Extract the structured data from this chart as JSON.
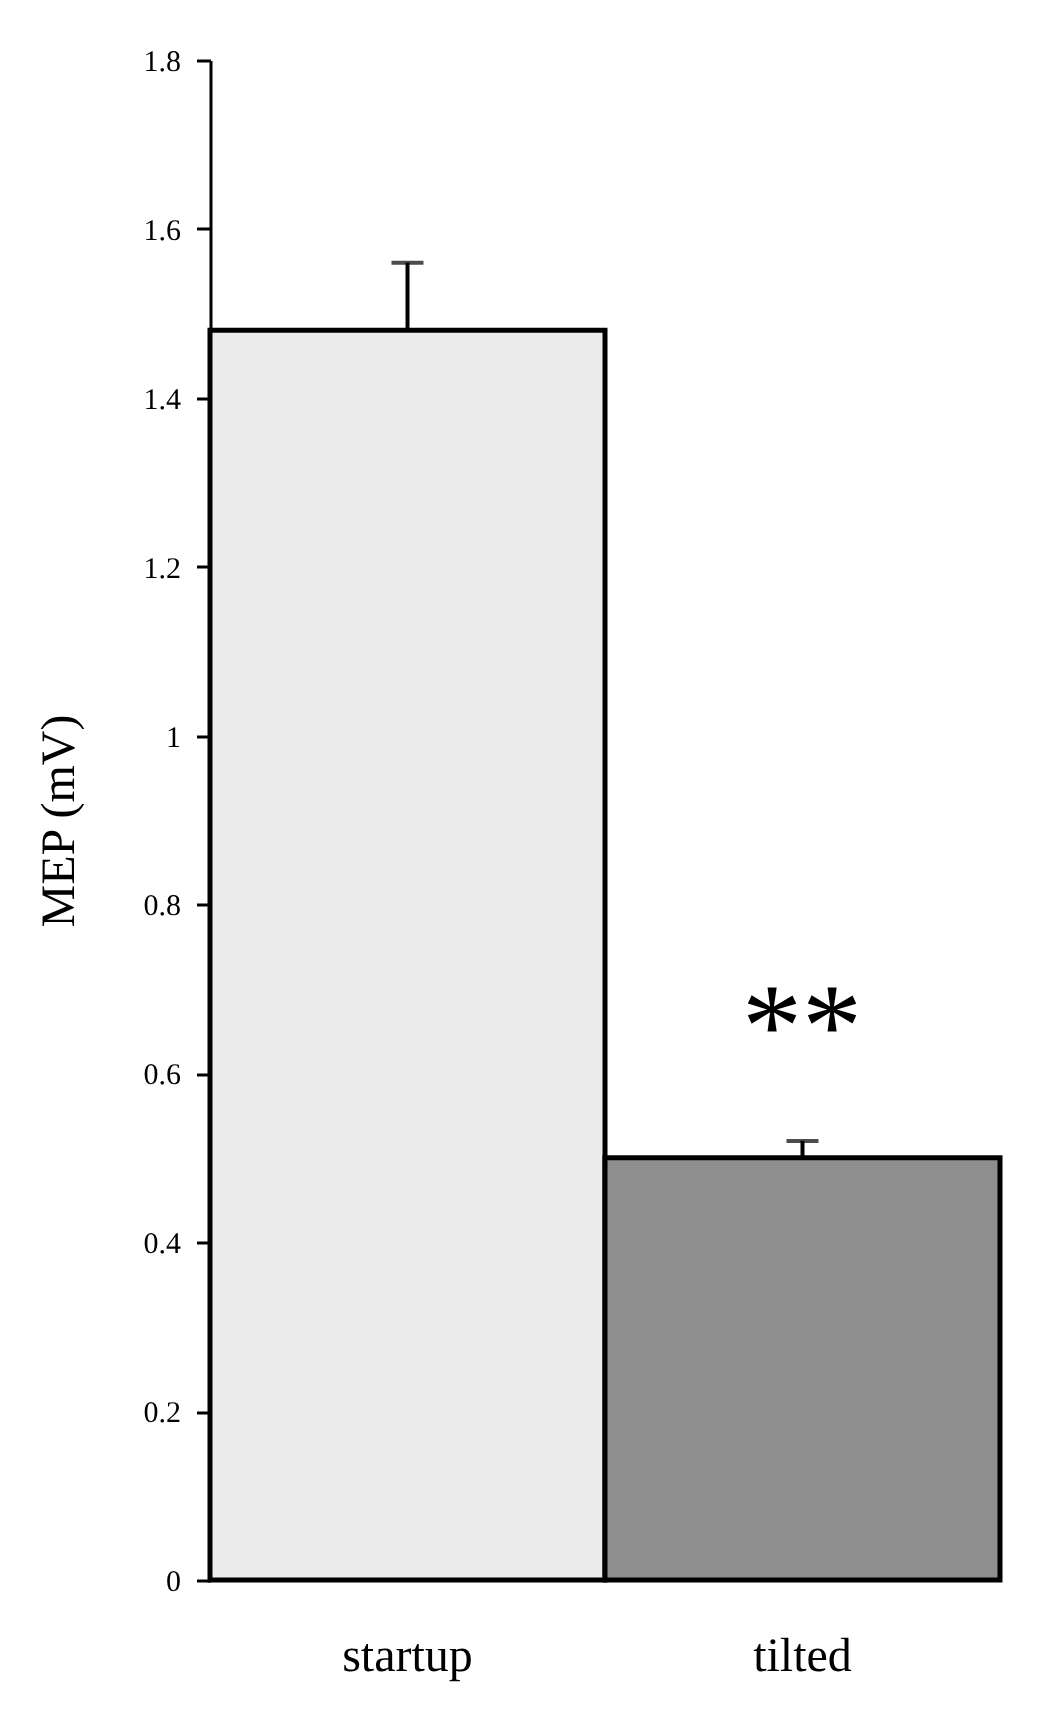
{
  "chart_data": {
    "type": "bar",
    "ylabel": "MEP (mV)",
    "categories": [
      "startup",
      "tilted"
    ],
    "values": [
      1.48,
      0.5
    ],
    "colors": [
      "#ececec",
      "#8e8e8e"
    ],
    "errors": [
      [
        1.48,
        1.56
      ],
      [
        0.5,
        0.52
      ]
    ],
    "ylim": [
      0,
      1.8
    ],
    "yticks": [
      0,
      0.2,
      0.4,
      0.6,
      0.8,
      1,
      1.2,
      1.4,
      1.6,
      1.8
    ],
    "grid": false,
    "annotations": [
      "**"
    ]
  }
}
